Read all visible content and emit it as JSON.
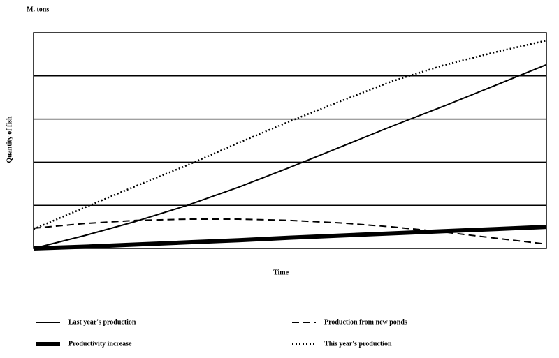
{
  "chart_data": {
    "type": "line",
    "y_unit": "M. tons",
    "y_label": "Quantity of fish",
    "x_label": "Time",
    "x": [
      0,
      1,
      2,
      3,
      4,
      5,
      6,
      7,
      8,
      9,
      10
    ],
    "xlim": [
      0,
      10
    ],
    "ylim": [
      0,
      5
    ],
    "gridlines": [
      1,
      2,
      3,
      4
    ],
    "series": [
      {
        "name": "Last year's production",
        "color": "#000",
        "style": "solid",
        "width": 2,
        "values": [
          0,
          0.3,
          0.63,
          1.0,
          1.42,
          1.88,
          2.36,
          2.84,
          3.3,
          3.78,
          4.26
        ]
      },
      {
        "name": "Production from new ponds",
        "color": "#000",
        "style": "dashed",
        "width": 2,
        "values": [
          0.47,
          0.58,
          0.65,
          0.68,
          0.68,
          0.65,
          0.59,
          0.5,
          0.38,
          0.24,
          0.1
        ]
      },
      {
        "name": "Productivity increase",
        "color": "#000",
        "style": "solid",
        "width": 6,
        "values": [
          0,
          0.04,
          0.09,
          0.14,
          0.19,
          0.25,
          0.3,
          0.35,
          0.4,
          0.45,
          0.5
        ]
      },
      {
        "name": "This year's production",
        "color": "#000",
        "style": "dotted",
        "width": 2.5,
        "values": [
          0.45,
          0.95,
          1.45,
          1.93,
          2.45,
          2.95,
          3.42,
          3.88,
          4.25,
          4.55,
          4.82
        ]
      }
    ]
  }
}
